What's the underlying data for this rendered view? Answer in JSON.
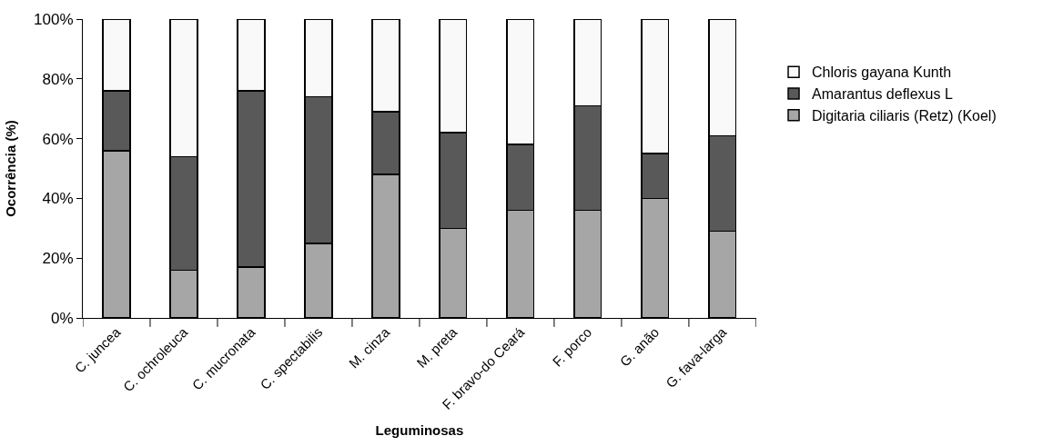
{
  "chart_data": {
    "type": "bar",
    "stacked": true,
    "xlabel": "Leguminosas",
    "ylabel": "Ocorrência (%)",
    "categories": [
      "C. juncea",
      "C. ochroleuca",
      "C. mucronata",
      "C. spectabilis",
      "M. cinza",
      "M. preta",
      "F. bravo-do Ceará",
      "F. porco",
      "G. anão",
      "G. fava-larga"
    ],
    "series": [
      {
        "name": "Digitaria ciliaris (Retz) (Koel)",
        "color": "#a6a6a6",
        "values": [
          56,
          16,
          17,
          25,
          48,
          30,
          36,
          36,
          40,
          29
        ]
      },
      {
        "name": "Amarantus deflexus L",
        "color": "#595959",
        "values": [
          20,
          38,
          59,
          49,
          21,
          32,
          22,
          35,
          15,
          32
        ]
      },
      {
        "name": "Chloris gayana Kunth",
        "color": "#f9f9f9",
        "values": [
          24,
          46,
          24,
          26,
          31,
          38,
          42,
          29,
          45,
          39
        ]
      }
    ],
    "ylim": [
      0,
      100
    ],
    "yticks": [
      {
        "value": 0,
        "label": "0%"
      },
      {
        "value": 20,
        "label": "20%"
      },
      {
        "value": 40,
        "label": "40%"
      },
      {
        "value": 60,
        "label": "60%"
      },
      {
        "value": 80,
        "label": "80%"
      },
      {
        "value": 100,
        "label": "100%"
      }
    ],
    "legend": "right"
  }
}
